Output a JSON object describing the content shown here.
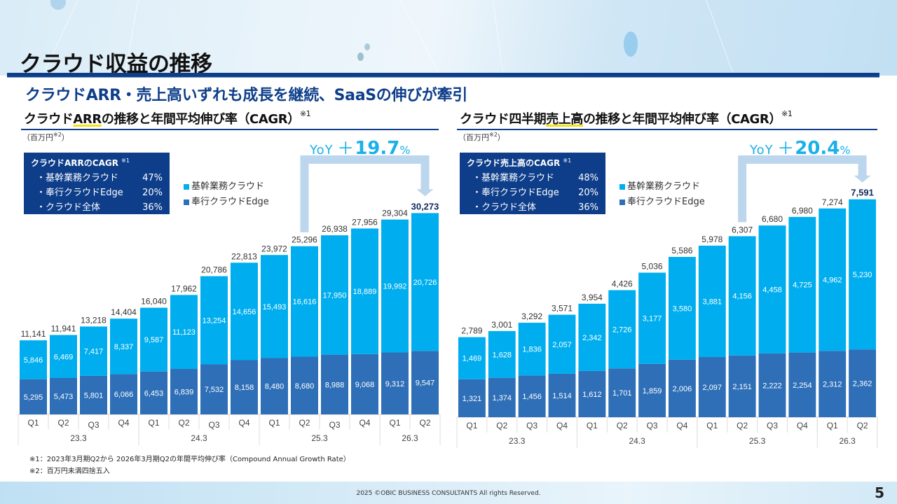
{
  "header": {
    "title": "クラウド収益の推移",
    "subtitle": "クラウドARR・売上高いずれも成長を継続、SaaSの伸びが牽引"
  },
  "left_panel": {
    "title_pre": "クラウド",
    "title_hl": "ARR",
    "title_post": "の推移と年間平均伸び率（CAGR）",
    "title_note": "※1",
    "unit": "（百万円",
    "unit_note": "※2",
    "unit_close": "）",
    "cagr_box": {
      "title": "クラウドARRのCAGR",
      "title_note": "※1",
      "rows": [
        {
          "label": "・基幹業務クラウド",
          "value": "47%"
        },
        {
          "label": "・奉行クラウドEdge",
          "value": "20%"
        },
        {
          "label": "・クラウド全体",
          "value": "36%"
        }
      ]
    },
    "yoy": {
      "label": "YoY",
      "sign": "＋",
      "value": "19.7",
      "unit": "%"
    }
  },
  "right_panel": {
    "title_pre": "クラウド四半期",
    "title_hl": "売上高",
    "title_post": "の推移と年間平均伸び率（CAGR）",
    "title_note": "※1",
    "unit": "（百万円",
    "unit_note": "※2",
    "unit_close": "）",
    "cagr_box": {
      "title": "クラウド売上高のCAGR",
      "title_note": "※1",
      "rows": [
        {
          "label": "・基幹業務クラウド",
          "value": "48%"
        },
        {
          "label": "・奉行クラウドEdge",
          "value": "20%"
        },
        {
          "label": "・クラウド全体",
          "value": "36%"
        }
      ]
    },
    "yoy": {
      "label": "YoY",
      "sign": "＋",
      "value": "20.4",
      "unit": "%"
    }
  },
  "legend": {
    "core": "基幹業務クラウド",
    "edge": "奉行クラウドEdge"
  },
  "colors": {
    "core": "#00aeef",
    "edge": "#2e6fb7",
    "navy": "#0e3e8a",
    "arrow": "#bcd6ee",
    "yoy": "#1ab0e8",
    "highlight_total": "#0e2a5c"
  },
  "chart_data": [
    {
      "type": "bar",
      "stacked": true,
      "title": "クラウドARRの推移と年間平均伸び率（CAGR）※1",
      "ylabel": "百万円",
      "categories": [
        "Q1",
        "Q2",
        "Q3",
        "Q4",
        "Q1",
        "Q2",
        "Q3",
        "Q4",
        "Q1",
        "Q2",
        "Q3",
        "Q4",
        "Q1",
        "Q2"
      ],
      "groups": [
        {
          "label": "23.3",
          "count": 4
        },
        {
          "label": "24.3",
          "count": 4
        },
        {
          "label": "25.3",
          "count": 4
        },
        {
          "label": "26.3",
          "count": 2
        }
      ],
      "series": [
        {
          "name": "奉行クラウドEdge",
          "values": [
            5295,
            5473,
            5801,
            6066,
            6453,
            6839,
            7532,
            8158,
            8480,
            8680,
            8988,
            9068,
            9312,
            9547
          ]
        },
        {
          "name": "基幹業務クラウド",
          "values": [
            5846,
            6469,
            7417,
            8337,
            9587,
            11123,
            13254,
            14656,
            15493,
            16616,
            17950,
            18889,
            19992,
            20726
          ]
        }
      ],
      "totals": [
        "11,141",
        "11,941",
        "13,218",
        "14,404",
        "16,040",
        "17,962",
        "20,786",
        "22,813",
        "23,972",
        "25,296",
        "26,938",
        "27,956",
        "29,304",
        "30,273"
      ],
      "total_values": [
        11141,
        11941,
        13218,
        14404,
        16040,
        17962,
        20786,
        22813,
        23972,
        25296,
        26938,
        27956,
        29304,
        30273
      ],
      "edge_labels": [
        "5,295",
        "5,473",
        "5,801",
        "6,066",
        "6,453",
        "6,839",
        "7,532",
        "8,158",
        "8,480",
        "8,680",
        "8,988",
        "9,068",
        "9,312",
        "9,547"
      ],
      "core_labels": [
        "5,846",
        "6,469",
        "7,417",
        "8,337",
        "9,587",
        "11,123",
        "13,254",
        "14,656",
        "15,493",
        "16,616",
        "17,950",
        "18,889",
        "19,992",
        "20,726"
      ],
      "ylim": [
        0,
        32000
      ],
      "grid": false,
      "legend": "top-center",
      "annotation": "YoY ＋19.7%"
    },
    {
      "type": "bar",
      "stacked": true,
      "title": "クラウド四半期売上高の推移と年間平均伸び率（CAGR）※1",
      "ylabel": "百万円",
      "categories": [
        "Q1",
        "Q2",
        "Q3",
        "Q4",
        "Q1",
        "Q2",
        "Q3",
        "Q4",
        "Q1",
        "Q2",
        "Q3",
        "Q4",
        "Q1",
        "Q2"
      ],
      "groups": [
        {
          "label": "23.3",
          "count": 4
        },
        {
          "label": "24.3",
          "count": 4
        },
        {
          "label": "25.3",
          "count": 4
        },
        {
          "label": "26.3",
          "count": 2
        }
      ],
      "series": [
        {
          "name": "奉行クラウドEdge",
          "values": [
            1321,
            1374,
            1456,
            1514,
            1612,
            1701,
            1859,
            2006,
            2097,
            2151,
            2222,
            2254,
            2312,
            2362
          ]
        },
        {
          "name": "基幹業務クラウド",
          "values": [
            1469,
            1628,
            1836,
            2057,
            2342,
            2726,
            3177,
            3580,
            3881,
            4156,
            4458,
            4725,
            4962,
            5230
          ]
        }
      ],
      "totals": [
        "2,789",
        "3,001",
        "3,292",
        "3,571",
        "3,954",
        "4,426",
        "5,036",
        "5,586",
        "5,978",
        "6,307",
        "6,680",
        "6,980",
        "7,274",
        "7,591"
      ],
      "total_values": [
        2789,
        3001,
        3292,
        3571,
        3954,
        4426,
        5036,
        5586,
        5978,
        6307,
        6680,
        6980,
        7274,
        7591
      ],
      "edge_labels": [
        "1,321",
        "1,374",
        "1,456",
        "1,514",
        "1,612",
        "1,701",
        "1,859",
        "2,006",
        "2,097",
        "2,151",
        "2,222",
        "2,254",
        "2,312",
        "2,362"
      ],
      "core_labels": [
        "1,469",
        "1,628",
        "1,836",
        "2,057",
        "2,342",
        "2,726",
        "3,177",
        "3,580",
        "3,881",
        "4,156",
        "4,458",
        "4,725",
        "4,962",
        "5,230"
      ],
      "ylim": [
        0,
        8000
      ],
      "grid": false,
      "legend": "top-center",
      "annotation": "YoY ＋20.4%"
    }
  ],
  "footnotes": [
    "※1：2023年3月期Q2から 2026年3月期Q2の年間平均伸び率（Compound Annual Growth Rate）",
    "※2：百万円未満四捨五入"
  ],
  "footer": {
    "copyright": "2025  ©OBIC BUSINESS CONSULTANTS All rights Reserved.",
    "page": "5"
  }
}
